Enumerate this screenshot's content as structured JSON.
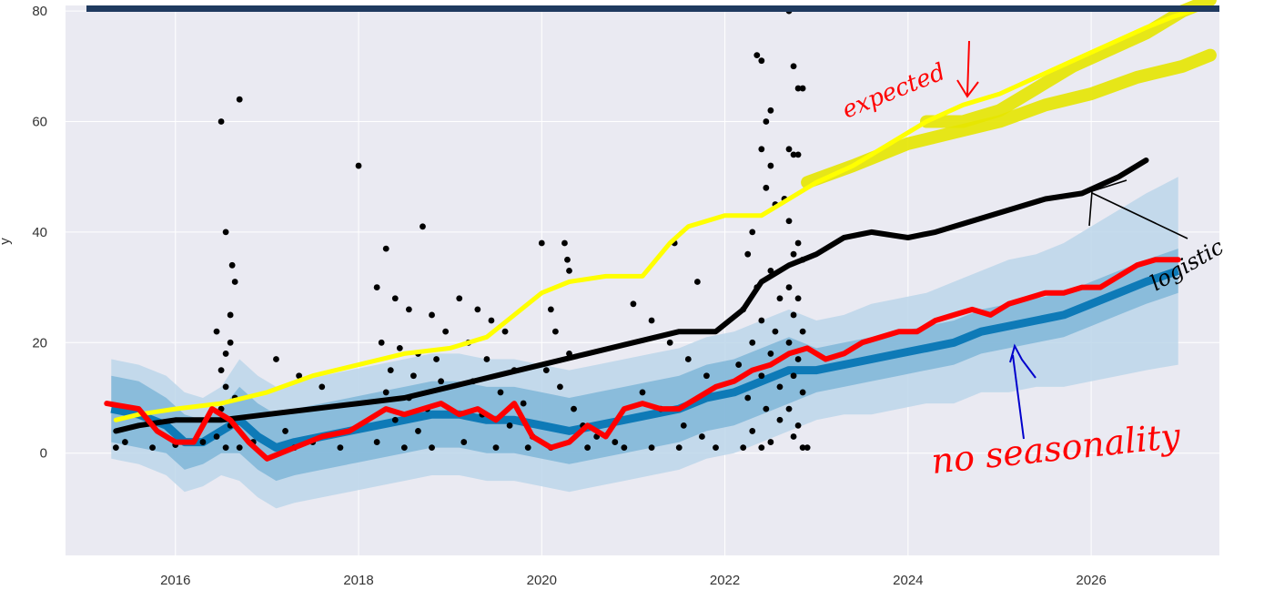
{
  "chart_data": {
    "type": "scatter",
    "title": "",
    "xlabel": "",
    "ylabel": "y",
    "xlim": [
      2014.8,
      2027.4
    ],
    "ylim": [
      -18.5,
      81
    ],
    "x_ticks": [
      "2016",
      "2018",
      "2020",
      "2022",
      "2024",
      "2026"
    ],
    "x_tick_values": [
      2016,
      2018,
      2020,
      2022,
      2024,
      2026
    ],
    "y_ticks": [
      "0",
      "20",
      "40",
      "60",
      "80"
    ],
    "y_tick_values": [
      0,
      20,
      40,
      60,
      80
    ],
    "grid": true,
    "colors": {
      "plot_background": "#eaeaf2",
      "grid": "#ffffff",
      "observed": "#000000",
      "forecast": "#0072B2",
      "uncertainty_inner": "#80b6d8",
      "uncertainty_outer": "#bcd6ea",
      "annotation_red": "#ff0000",
      "annotation_yellow": "#ffff00",
      "annotation_yellow_band": "#e6e600",
      "annotation_black": "#000000",
      "annotation_blue": "#0000cc",
      "frame_bar": "#1f3a5f"
    },
    "observed_points": [
      [
        2015.35,
        1
      ],
      [
        2015.45,
        2
      ],
      [
        2015.75,
        1
      ],
      [
        2016.0,
        1.5
      ],
      [
        2016.3,
        2
      ],
      [
        2016.5,
        60
      ],
      [
        2016.55,
        40
      ],
      [
        2016.62,
        34
      ],
      [
        2016.65,
        31
      ],
      [
        2016.7,
        64
      ],
      [
        2016.6,
        25
      ],
      [
        2016.6,
        20
      ],
      [
        2016.55,
        18
      ],
      [
        2016.5,
        15
      ],
      [
        2016.55,
        12
      ],
      [
        2016.5,
        8
      ],
      [
        2016.6,
        5
      ],
      [
        2016.45,
        3
      ],
      [
        2016.55,
        1
      ],
      [
        2016.7,
        1
      ],
      [
        2016.85,
        2
      ],
      [
        2016.65,
        10
      ],
      [
        2016.45,
        22
      ],
      [
        2017.1,
        17
      ],
      [
        2017.35,
        14
      ],
      [
        2017.6,
        12
      ],
      [
        2017.2,
        4
      ],
      [
        2017.5,
        2
      ],
      [
        2017.8,
        1
      ],
      [
        2017.3,
        1
      ],
      [
        2018.0,
        52
      ],
      [
        2018.3,
        37
      ],
      [
        2018.7,
        41
      ],
      [
        2018.2,
        30
      ],
      [
        2018.4,
        28
      ],
      [
        2018.55,
        26
      ],
      [
        2018.8,
        25
      ],
      [
        2018.95,
        22
      ],
      [
        2018.25,
        20
      ],
      [
        2018.45,
        19
      ],
      [
        2018.65,
        18
      ],
      [
        2018.85,
        17
      ],
      [
        2018.35,
        15
      ],
      [
        2018.6,
        14
      ],
      [
        2018.9,
        13
      ],
      [
        2018.3,
        11
      ],
      [
        2018.55,
        10
      ],
      [
        2018.75,
        8
      ],
      [
        2018.4,
        6
      ],
      [
        2018.65,
        4
      ],
      [
        2018.2,
        2
      ],
      [
        2018.5,
        1
      ],
      [
        2018.8,
        1
      ],
      [
        2019.1,
        28
      ],
      [
        2019.3,
        26
      ],
      [
        2019.45,
        24
      ],
      [
        2019.6,
        22
      ],
      [
        2019.2,
        20
      ],
      [
        2019.4,
        17
      ],
      [
        2019.7,
        15
      ],
      [
        2019.25,
        13
      ],
      [
        2019.55,
        11
      ],
      [
        2019.8,
        9
      ],
      [
        2019.35,
        7
      ],
      [
        2019.65,
        5
      ],
      [
        2019.9,
        3
      ],
      [
        2019.15,
        2
      ],
      [
        2019.5,
        1
      ],
      [
        2019.85,
        1
      ],
      [
        2020.0,
        38
      ],
      [
        2020.25,
        38
      ],
      [
        2020.28,
        35
      ],
      [
        2020.3,
        33
      ],
      [
        2020.1,
        26
      ],
      [
        2020.15,
        22
      ],
      [
        2020.3,
        18
      ],
      [
        2020.05,
        15
      ],
      [
        2020.2,
        12
      ],
      [
        2020.35,
        8
      ],
      [
        2020.45,
        5
      ],
      [
        2020.6,
        3
      ],
      [
        2020.8,
        2
      ],
      [
        2020.1,
        1
      ],
      [
        2020.5,
        1
      ],
      [
        2020.9,
        1
      ],
      [
        2021.0,
        27
      ],
      [
        2021.2,
        24
      ],
      [
        2021.4,
        20
      ],
      [
        2021.6,
        17
      ],
      [
        2021.8,
        14
      ],
      [
        2021.1,
        11
      ],
      [
        2021.3,
        8
      ],
      [
        2021.55,
        5
      ],
      [
        2021.75,
        3
      ],
      [
        2021.2,
        1
      ],
      [
        2021.5,
        1
      ],
      [
        2021.9,
        1
      ],
      [
        2021.45,
        38
      ],
      [
        2021.7,
        31
      ],
      [
        2022.35,
        72
      ],
      [
        2022.4,
        71
      ],
      [
        2022.5,
        62
      ],
      [
        2022.45,
        60
      ],
      [
        2022.4,
        55
      ],
      [
        2022.5,
        52
      ],
      [
        2022.45,
        48
      ],
      [
        2022.55,
        45
      ],
      [
        2022.3,
        40
      ],
      [
        2022.25,
        36
      ],
      [
        2022.5,
        33
      ],
      [
        2022.35,
        30
      ],
      [
        2022.6,
        28
      ],
      [
        2022.2,
        26
      ],
      [
        2022.4,
        24
      ],
      [
        2022.55,
        22
      ],
      [
        2022.3,
        20
      ],
      [
        2022.5,
        18
      ],
      [
        2022.15,
        16
      ],
      [
        2022.4,
        14
      ],
      [
        2022.6,
        12
      ],
      [
        2022.25,
        10
      ],
      [
        2022.45,
        8
      ],
      [
        2022.6,
        6
      ],
      [
        2022.3,
        4
      ],
      [
        2022.5,
        2
      ],
      [
        2022.2,
        1
      ],
      [
        2022.4,
        1
      ],
      [
        2022.7,
        80
      ],
      [
        2022.75,
        70
      ],
      [
        2022.8,
        66
      ],
      [
        2022.85,
        66
      ],
      [
        2022.7,
        55
      ],
      [
        2022.75,
        54
      ],
      [
        2022.8,
        54
      ],
      [
        2022.65,
        46
      ],
      [
        2022.7,
        42
      ],
      [
        2022.8,
        38
      ],
      [
        2022.75,
        36
      ],
      [
        2022.85,
        35
      ],
      [
        2022.7,
        30
      ],
      [
        2022.8,
        28
      ],
      [
        2022.75,
        25
      ],
      [
        2022.85,
        22
      ],
      [
        2022.7,
        20
      ],
      [
        2022.8,
        17
      ],
      [
        2022.75,
        14
      ],
      [
        2022.85,
        11
      ],
      [
        2022.7,
        8
      ],
      [
        2022.8,
        5
      ],
      [
        2022.75,
        3
      ],
      [
        2022.85,
        1
      ],
      [
        2022.9,
        1
      ]
    ],
    "forecast_series": {
      "name": "",
      "x": [
        2015.3,
        2015.6,
        2015.9,
        2016.1,
        2016.3,
        2016.5,
        2016.7,
        2016.9,
        2017.1,
        2017.3,
        2017.6,
        2017.9,
        2018.2,
        2018.5,
        2018.8,
        2019.1,
        2019.4,
        2019.7,
        2020.0,
        2020.3,
        2020.6,
        2020.9,
        2021.2,
        2021.5,
        2021.8,
        2022.1,
        2022.4,
        2022.7,
        2023.0,
        2023.3,
        2023.6,
        2023.9,
        2024.2,
        2024.5,
        2024.8,
        2025.1,
        2025.4,
        2025.7,
        2026.0,
        2026.3,
        2026.6,
        2026.95
      ],
      "values": [
        8,
        7,
        5,
        2,
        2,
        4,
        6,
        3,
        1,
        2,
        3,
        4,
        5,
        6,
        7,
        7,
        6,
        6,
        5,
        4,
        5,
        6,
        7,
        8,
        10,
        11,
        13,
        15,
        15,
        16,
        17,
        18,
        19,
        20,
        22,
        23,
        24,
        25,
        27,
        29,
        31,
        33
      ],
      "band_inner_halfwidth": [
        6,
        6,
        5,
        5,
        4,
        4,
        6,
        6,
        6,
        6,
        6,
        6,
        6,
        6,
        6,
        6,
        6,
        6,
        6,
        6,
        6,
        6,
        6,
        6,
        6,
        6,
        6,
        6,
        4,
        4,
        4,
        4,
        4,
        4,
        4,
        4,
        4,
        4,
        4,
        4,
        4,
        4
      ],
      "band_outer_halfwidth": [
        9,
        9,
        9,
        9,
        8,
        8,
        11,
        11,
        11,
        11,
        11,
        11,
        11,
        11,
        11,
        11,
        11,
        11,
        11,
        11,
        11,
        11,
        11,
        11,
        11,
        11,
        11,
        11,
        9,
        9,
        10,
        10,
        10,
        11,
        11,
        12,
        12,
        13,
        14,
        15,
        16,
        17
      ]
    },
    "annotations": {
      "red_curve": {
        "x": [
          2015.25,
          2015.6,
          2015.8,
          2016.0,
          2016.2,
          2016.4,
          2016.6,
          2016.8,
          2017.0,
          2017.3,
          2017.6,
          2017.9,
          2018.1,
          2018.3,
          2018.5,
          2018.7,
          2018.9,
          2019.1,
          2019.3,
          2019.5,
          2019.7,
          2019.9,
          2020.1,
          2020.3,
          2020.5,
          2020.7,
          2020.9,
          2021.1,
          2021.3,
          2021.5,
          2021.7,
          2021.9,
          2022.1,
          2022.3,
          2022.5,
          2022.7,
          2022.9,
          2023.1,
          2023.3,
          2023.5,
          2023.7,
          2023.9,
          2024.1,
          2024.3,
          2024.5,
          2024.7,
          2024.9,
          2025.1,
          2025.3,
          2025.5,
          2025.7,
          2025.9,
          2026.1,
          2026.3,
          2026.5,
          2026.7,
          2026.95
        ],
        "y": [
          9,
          8,
          4,
          2,
          2,
          8,
          6,
          2,
          -1,
          1,
          3,
          4,
          6,
          8,
          7,
          8,
          9,
          7,
          8,
          6,
          9,
          3,
          1,
          2,
          5,
          3,
          8,
          9,
          8,
          8,
          10,
          12,
          13,
          15,
          16,
          18,
          19,
          17,
          18,
          20,
          21,
          22,
          22,
          24,
          25,
          26,
          25,
          27,
          28,
          29,
          29,
          30,
          30,
          32,
          34,
          35,
          35
        ]
      },
      "yellow_curve": {
        "x": [
          2015.35,
          2015.6,
          2016.0,
          2016.5,
          2017.0,
          2017.5,
          2018.0,
          2018.5,
          2019.0,
          2019.4,
          2019.7,
          2020.0,
          2020.3,
          2020.7,
          2021.0,
          2021.1,
          2021.4,
          2021.6,
          2022.0,
          2022.4,
          2022.7,
          2023.0,
          2023.4,
          2023.8,
          2024.2,
          2024.6,
          2025.0,
          2025.4,
          2025.8,
          2026.2,
          2026.6,
          2026.9,
          2027.1
        ],
        "y": [
          6,
          7,
          8,
          9,
          11,
          14,
          16,
          18,
          19,
          21,
          25,
          29,
          31,
          32,
          32,
          32,
          38,
          41,
          43,
          43,
          46,
          49,
          52,
          56,
          60,
          63,
          65,
          68,
          71,
          74,
          77,
          79,
          80
        ]
      },
      "yellow_band_upper": {
        "x": [
          2024.2,
          2024.6,
          2025.0,
          2025.4,
          2025.8,
          2026.2,
          2026.6,
          2027.0,
          2027.3
        ],
        "y": [
          60,
          60,
          62,
          66,
          70,
          73,
          76,
          80,
          82
        ]
      },
      "yellow_band_lower": {
        "x": [
          2022.9,
          2023.4,
          2024.0,
          2024.5,
          2025.0,
          2025.5,
          2026.0,
          2026.5,
          2027.0,
          2027.3
        ],
        "y": [
          49,
          52,
          56,
          58,
          60,
          63,
          65,
          68,
          70,
          72
        ]
      },
      "black_curve": {
        "x": [
          2015.35,
          2015.6,
          2016.0,
          2016.5,
          2017.0,
          2017.5,
          2018.0,
          2018.5,
          2019.0,
          2019.5,
          2020.0,
          2020.5,
          2021.0,
          2021.5,
          2021.9,
          2022.2,
          2022.4,
          2022.7,
          2023.0,
          2023.3,
          2023.6,
          2024.0,
          2024.3,
          2024.7,
          2025.1,
          2025.5,
          2025.9,
          2026.3,
          2026.6
        ],
        "y": [
          4,
          5,
          6,
          6,
          7,
          8,
          9,
          10,
          12,
          14,
          16,
          18,
          20,
          22,
          22,
          26,
          31,
          34,
          36,
          39,
          40,
          39,
          40,
          42,
          44,
          46,
          47,
          50,
          53
        ]
      },
      "labels": {
        "expected": "expected",
        "no_seasonality": "no seasonality",
        "logistic": "logistic"
      }
    }
  }
}
